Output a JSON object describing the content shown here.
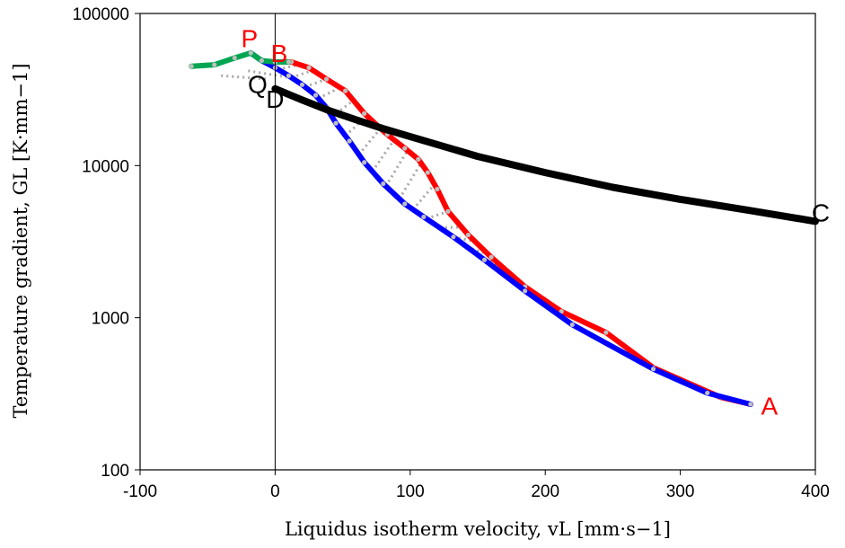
{
  "chart_data": {
    "type": "line",
    "xlabel": "Liquidus isotherm velocity, vL [mm·s−1]",
    "ylabel": "Temperature gradient, GL [K·mm−1]",
    "xlim": [
      -100,
      400
    ],
    "ylim": [
      100,
      100000
    ],
    "yscale": "log",
    "x_ticks": [
      -100,
      0,
      100,
      200,
      300,
      400
    ],
    "x_tick_labels": [
      "-100",
      "0",
      "100",
      "200",
      "300",
      "400"
    ],
    "y_ticks": [
      100,
      1000,
      10000,
      100000
    ],
    "y_tick_labels": [
      "100",
      "1000",
      "10000",
      "100000"
    ],
    "grid": false,
    "legend": "none",
    "vertical_line_x": 0,
    "series": [
      {
        "color": "#ff0000",
        "markers": true,
        "x": [
          352,
          330,
          280,
          245,
          212,
          185,
          160,
          143,
          128,
          120,
          113,
          106,
          96,
          83,
          66,
          52,
          38,
          25,
          12,
          2
        ],
        "y": [
          270,
          300,
          470,
          800,
          1100,
          1600,
          2500,
          3500,
          5000,
          7000,
          9000,
          11000,
          13000,
          16000,
          22000,
          31000,
          37000,
          44000,
          48000,
          48000
        ]
      },
      {
        "color": "#0000ff",
        "markers": true,
        "x": [
          352,
          320,
          280,
          220,
          185,
          155,
          132,
          110,
          96,
          80,
          66,
          55,
          45,
          38,
          30,
          20,
          10,
          0,
          -10,
          -18
        ],
        "y": [
          270,
          320,
          460,
          900,
          1500,
          2400,
          3400,
          4600,
          5600,
          7600,
          10500,
          14500,
          19000,
          24000,
          29000,
          34000,
          39000,
          44000,
          49000,
          55000
        ]
      },
      {
        "color": "#00a651",
        "markers": true,
        "x": [
          -62,
          -45,
          -30,
          -18,
          -10,
          0,
          10
        ],
        "y": [
          45000,
          46000,
          51000,
          55000,
          49000,
          48000,
          48000
        ]
      },
      {
        "color": "#000000",
        "markers": false,
        "x": [
          0,
          20,
          40,
          60,
          80,
          100,
          150,
          200,
          250,
          300,
          350,
          400
        ],
        "y": [
          32000,
          27000,
          23000,
          20000,
          17500,
          15500,
          11500,
          9000,
          7200,
          6000,
          5100,
          4300
        ]
      }
    ],
    "hatch_color": "#a6a6a6",
    "annotations": [
      {
        "label": "P",
        "color": "#ff0000",
        "x": -19,
        "y": 60000
      },
      {
        "label": "B",
        "color": "#ff0000",
        "x": 3,
        "y": 48000
      },
      {
        "label": "Q",
        "color": "#000000",
        "x": -13,
        "y": 30000
      },
      {
        "label": "D",
        "color": "#000000",
        "x": 0,
        "y": 24000
      },
      {
        "label": "C",
        "color": "#000000",
        "x": 404,
        "y": 4300
      },
      {
        "label": "A",
        "color": "#ff0000",
        "x": 366,
        "y": 230
      }
    ]
  }
}
